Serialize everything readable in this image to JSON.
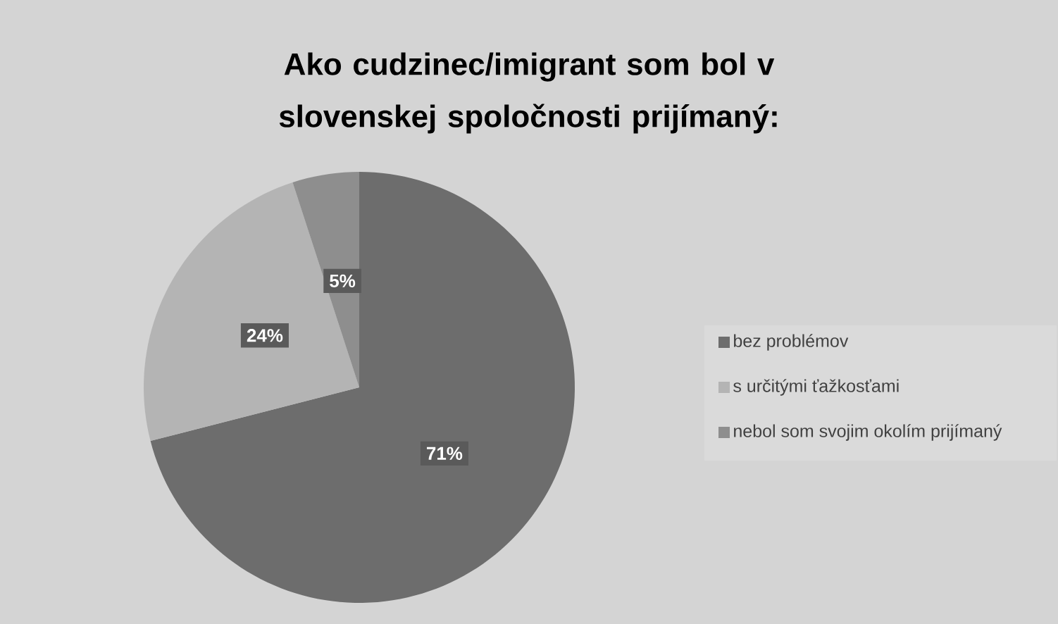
{
  "chart_data": {
    "type": "pie",
    "title": "Ako cudzinec/imigrant som bol v slovenskej spoločnosti prijímaný:",
    "categories": [
      "bez problémov",
      "s určitými ťažkosťami",
      "nebol som svojim okolím prijímaný"
    ],
    "values": [
      71,
      24,
      5
    ],
    "colors": [
      "#6d6d6d",
      "#b4b4b4",
      "#8e8e8e"
    ],
    "value_labels": [
      "71%",
      "24%",
      "5%"
    ],
    "legend": "right"
  }
}
